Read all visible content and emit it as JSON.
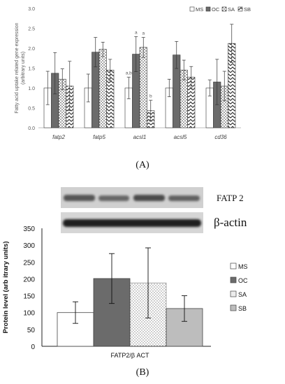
{
  "colors": {
    "MS": "#ffffff",
    "OC": "#6b6b6b",
    "SA": "#ffffff",
    "SB": "#ffffff",
    "axis": "#bfbfbf",
    "blot_bg": "#cfcfcf",
    "blot_band": "#2f2f2f"
  },
  "panel_labels": {
    "a": "(A)",
    "b": "(B)"
  },
  "chart_data": [
    {
      "type": "bar",
      "ylabel": "Fatty acid uptake related gene expression (arbitrary units)",
      "ylim": [
        0,
        3.0
      ],
      "yticks": [
        "0.0",
        "0.5",
        "1.0",
        "1.5",
        "2.0",
        "2.5",
        "3.0"
      ],
      "categories": [
        "fatp2",
        "fatp5",
        "acsl1",
        "acsl5",
        "cd36"
      ],
      "legend": [
        "MS",
        "OC",
        "SA",
        "SB"
      ],
      "legend_position": "top-right",
      "series": [
        {
          "name": "MS",
          "pattern": "white",
          "values": [
            1.0,
            1.0,
            1.0,
            1.0,
            1.0
          ],
          "errors": [
            0.42,
            0.35,
            0.27,
            0.22,
            0.2
          ]
        },
        {
          "name": "OC",
          "pattern": "dark",
          "values": [
            1.37,
            1.9,
            1.85,
            1.83,
            1.15
          ],
          "errors": [
            0.52,
            0.37,
            0.44,
            0.34,
            0.57
          ]
        },
        {
          "name": "SA",
          "pattern": "dots",
          "values": [
            1.22,
            1.97,
            2.02,
            1.45,
            1.05
          ],
          "errors": [
            0.26,
            0.18,
            0.25,
            0.25,
            0.37
          ]
        },
        {
          "name": "SB",
          "pattern": "zigzag",
          "values": [
            1.05,
            1.45,
            0.43,
            1.27,
            2.12
          ],
          "errors": [
            0.62,
            0.27,
            0.26,
            0.27,
            0.48
          ]
        }
      ],
      "annotations": [
        {
          "category": "acsl1",
          "series": "MS",
          "text": "a,b"
        },
        {
          "category": "acsl1",
          "series": "OC",
          "text": "a"
        },
        {
          "category": "acsl1",
          "series": "SA",
          "text": "a"
        },
        {
          "category": "acsl1",
          "series": "SB",
          "text": "b"
        }
      ]
    },
    {
      "type": "bar",
      "ylabel": "Protein level (arb itrary units)",
      "ylim": [
        0,
        350
      ],
      "yticks": [
        "0",
        "50",
        "100",
        "150",
        "200",
        "250",
        "300",
        "350"
      ],
      "categories": [
        "FATP2/β ACT"
      ],
      "legend": [
        "MS",
        "OC",
        "SA",
        "SB"
      ],
      "legend_position": "right",
      "series": [
        {
          "name": "MS",
          "pattern": "white",
          "values": [
            100
          ],
          "errors": [
            32
          ]
        },
        {
          "name": "OC",
          "pattern": "dark",
          "values": [
            201
          ],
          "errors": [
            74
          ]
        },
        {
          "name": "SA",
          "pattern": "dots",
          "values": [
            188
          ],
          "errors": [
            104
          ]
        },
        {
          "name": "SB",
          "pattern": "light",
          "values": [
            112
          ],
          "errors": [
            38
          ]
        }
      ]
    }
  ],
  "blot": {
    "label_top": "FATP 2",
    "label_bottom": "β-actin"
  }
}
